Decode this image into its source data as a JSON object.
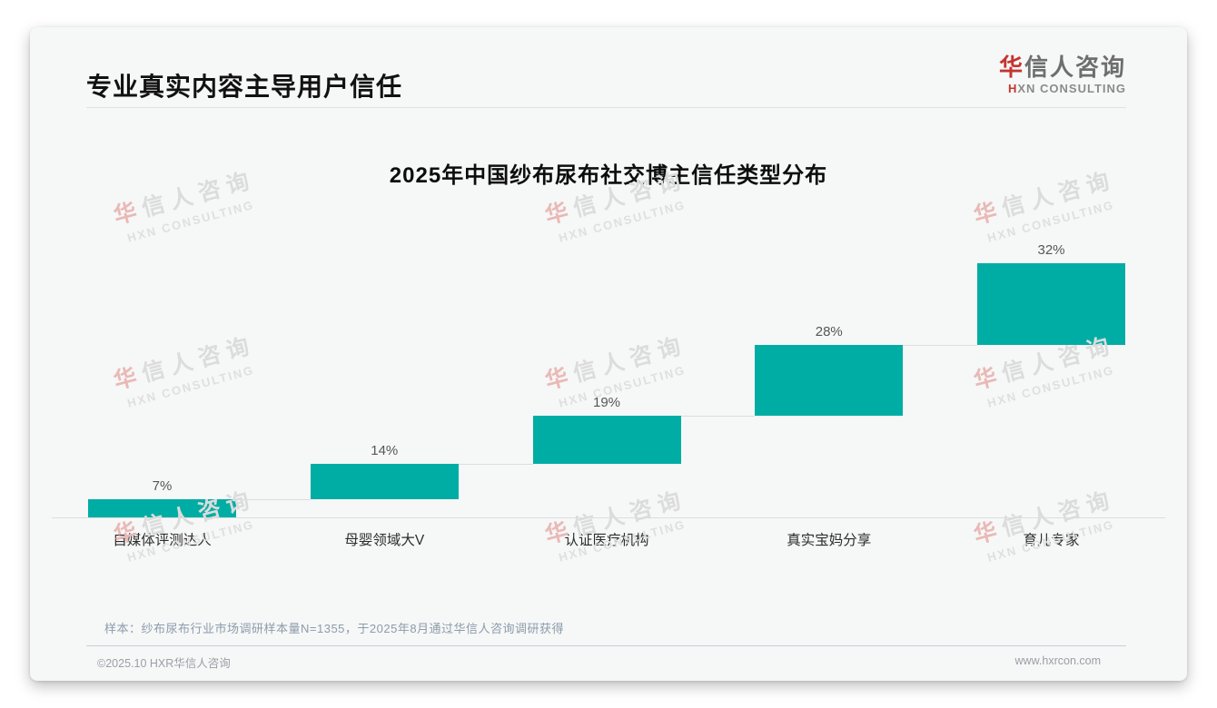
{
  "page": {
    "title": "专业真实内容主导用户信任",
    "logo": {
      "zh_accent": "华",
      "zh_rest": "信人咨询",
      "en_accent": "H",
      "en_rest": "XN CONSULTING"
    },
    "watermark": {
      "line1_accent": "华",
      "line1_rest": "信人咨询",
      "line2": "HXN CONSULTING"
    },
    "footnote": "样本：纱布尿布行业市场调研样本量N=1355，于2025年8月通过华信人咨询调研获得",
    "footer": {
      "left": "©2025.10 HXR华信人咨询",
      "right": "www.hxrcon.com"
    }
  },
  "chart_data": {
    "type": "bar",
    "subtype": "waterfall-stairs",
    "title": "2025年中国纱布尿布社交博主信任类型分布",
    "categories": [
      "自媒体评测达人",
      "母婴领域大V",
      "认证医疗机构",
      "真实宝妈分享",
      "育儿专家"
    ],
    "values": [
      7,
      14,
      19,
      28,
      32
    ],
    "labels": [
      "7%",
      "14%",
      "19%",
      "28%",
      "32%"
    ],
    "cumulative": [
      7,
      21,
      40,
      68,
      100
    ],
    "unit": "%",
    "ylim": [
      0,
      100
    ],
    "bar_color": "#00ada4",
    "grid": false,
    "legend": "none",
    "orientation": "vertical",
    "note": "each bar starts at the cumulative total of previous bars (stair / waterfall style), connected by light gray lines"
  },
  "colors": {
    "bar": "#00ada4",
    "accent_red": "#c5342f",
    "card_bg": "#f6f7f7",
    "axis": "#dcdddd",
    "value_label": "#565656",
    "footnote": "#8c9cab"
  }
}
